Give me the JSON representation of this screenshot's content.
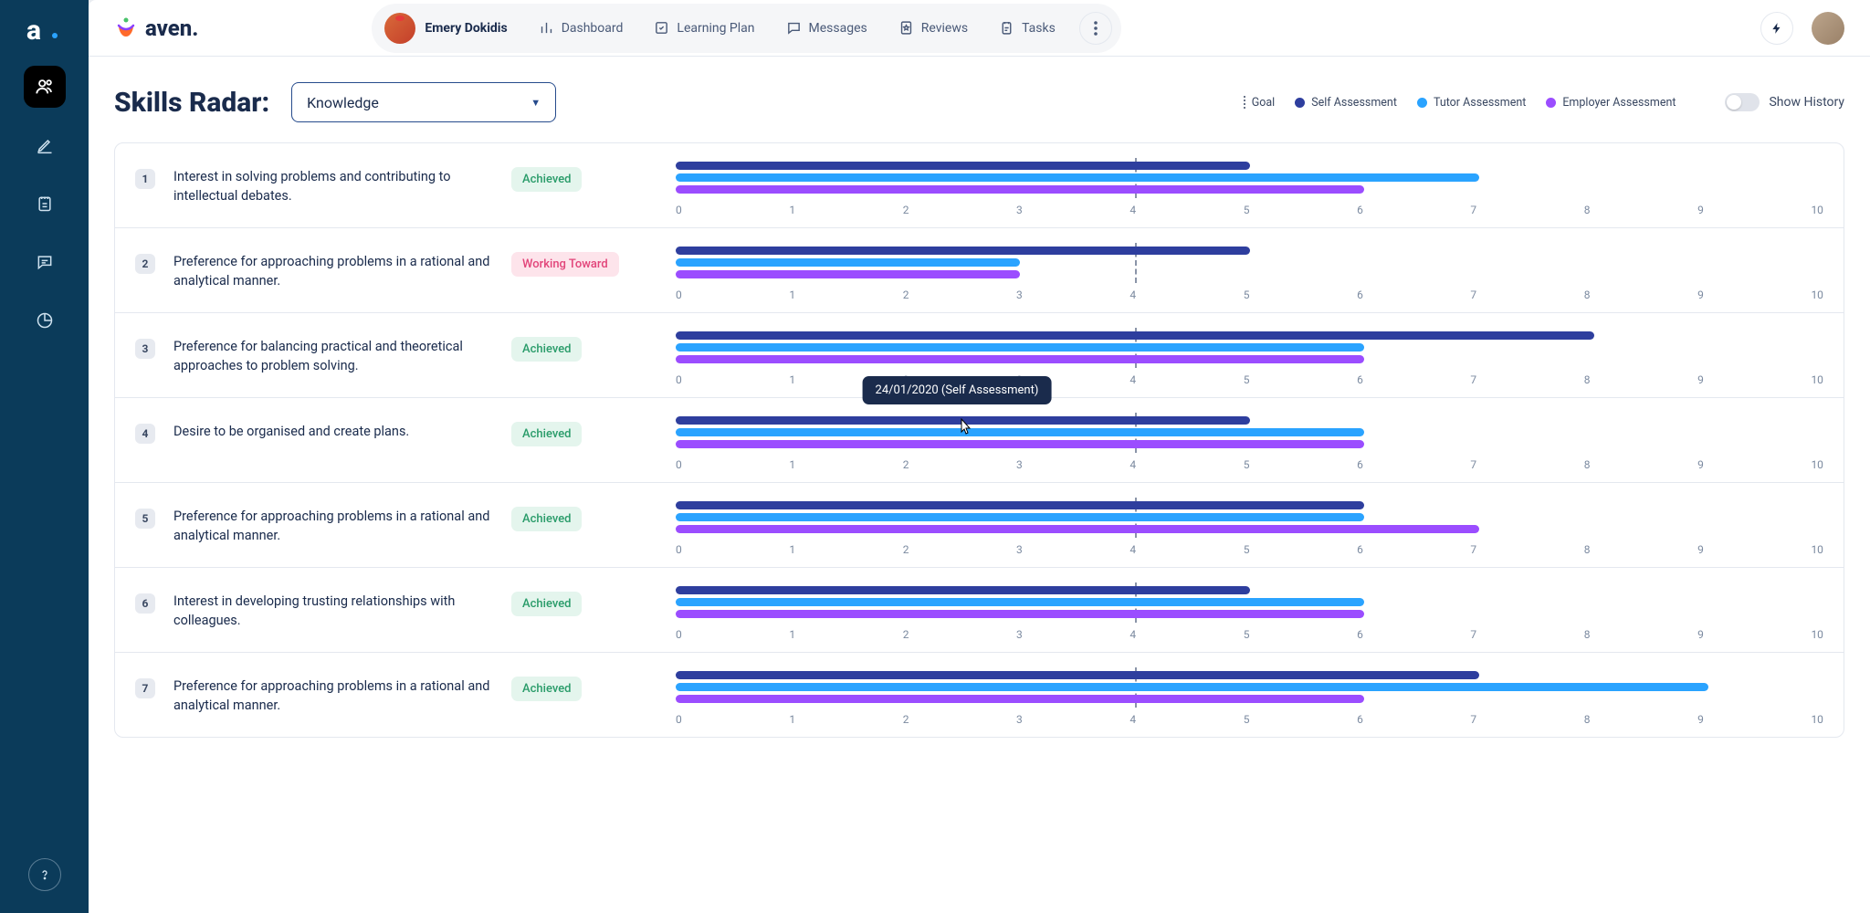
{
  "colors": {
    "self": "#2e3e9e",
    "tutor": "#2aa3ff",
    "employer": "#9b4dff",
    "achieved_bg": "#e4f5ed",
    "achieved_text": "#2a9c6a",
    "working_bg": "#fde4eb",
    "working_text": "#e2457a",
    "sidebar": "#0b3b5a"
  },
  "brand": {
    "name": "aven."
  },
  "header": {
    "user_name": "Emery Dokidis",
    "nav": {
      "dashboard": "Dashboard",
      "learning_plan": "Learning Plan",
      "messages": "Messages",
      "reviews": "Reviews",
      "tasks": "Tasks"
    }
  },
  "page": {
    "title": "Skills Radar:",
    "filter_value": "Knowledge",
    "show_history_label": "Show History"
  },
  "legend": {
    "goal": "Goal",
    "self": "Self Assessment",
    "tutor": "Tutor Assessment",
    "employer": "Employer Assessment"
  },
  "axis": {
    "min": 0,
    "max": 10,
    "step": 1,
    "ticks": [
      "0",
      "1",
      "2",
      "3",
      "4",
      "5",
      "6",
      "7",
      "8",
      "9",
      "10"
    ]
  },
  "tooltip": {
    "text": "24/01/2020 (Self Assessment)",
    "on_row": 4,
    "x_value": 2.45
  },
  "status_labels": {
    "achieved": "Achieved",
    "working": "Working Toward"
  },
  "rows": [
    {
      "n": "1",
      "desc": "Interest in solving problems and contributing to intellectual debates.",
      "status": "achieved",
      "goal": 4,
      "self": 5,
      "tutor": 7,
      "employer": 6
    },
    {
      "n": "2",
      "desc": "Preference for approaching problems in a rational and analytical manner.",
      "status": "working",
      "goal": 4,
      "self": 5,
      "tutor": 3,
      "employer": 3
    },
    {
      "n": "3",
      "desc": "Preference for balancing practical and theoretical approaches to problem solving.",
      "status": "achieved",
      "goal": 4,
      "self": 8,
      "tutor": 6,
      "employer": 6
    },
    {
      "n": "4",
      "desc": "Desire to be organised and create plans.",
      "status": "achieved",
      "goal": 4,
      "self": 5,
      "tutor": 6,
      "employer": 6
    },
    {
      "n": "5",
      "desc": "Preference for approaching problems in a rational and analytical manner.",
      "status": "achieved",
      "goal": 4,
      "self": 6,
      "tutor": 6,
      "employer": 7
    },
    {
      "n": "6",
      "desc": "Interest in developing trusting relationships with colleagues.",
      "status": "achieved",
      "goal": 4,
      "self": 5,
      "tutor": 6,
      "employer": 6
    },
    {
      "n": "7",
      "desc": "Preference for approaching problems in a rational and analytical manner.",
      "status": "achieved",
      "goal": 4,
      "self": 7,
      "tutor": 9,
      "employer": 6
    }
  ]
}
